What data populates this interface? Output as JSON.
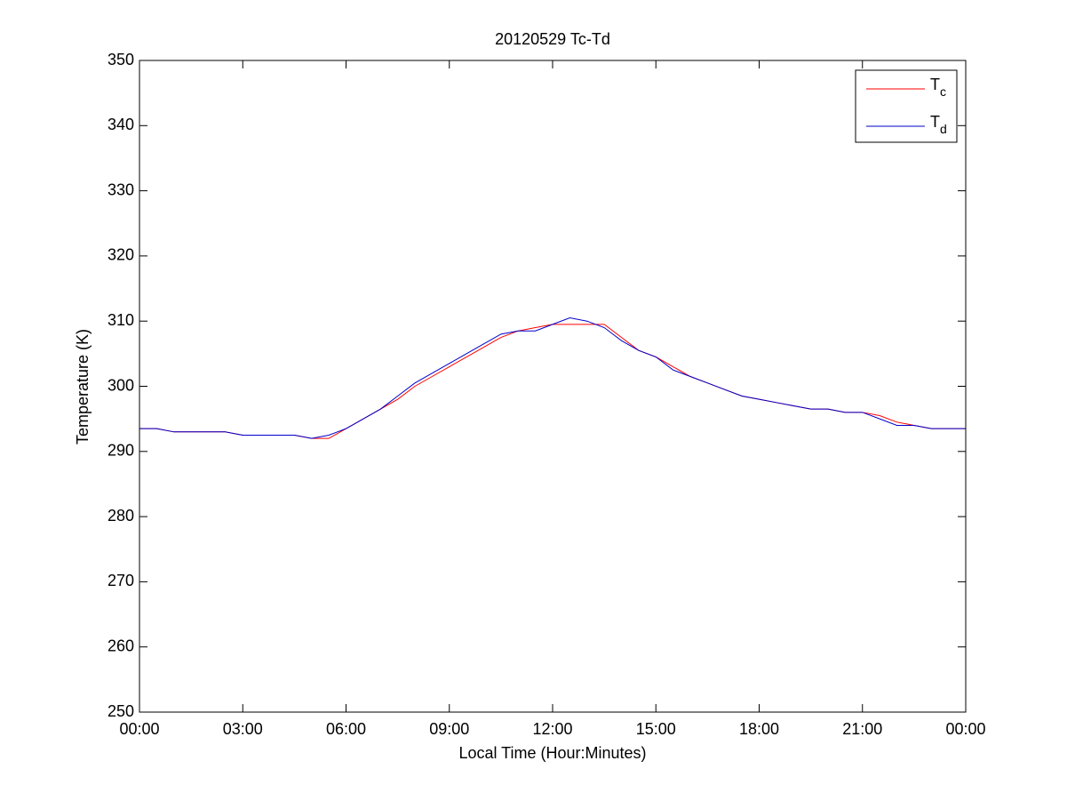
{
  "chart_data": {
    "type": "line",
    "title": "20120529 Tc-Td",
    "xlabel": "Local Time (Hour:Minutes)",
    "ylabel": "Temperature (K)",
    "x": [
      0,
      0.5,
      1,
      1.5,
      2,
      2.5,
      3,
      3.5,
      4,
      4.5,
      5,
      5.5,
      6,
      6.5,
      7,
      7.5,
      8,
      8.5,
      9,
      9.5,
      10,
      10.5,
      11,
      11.5,
      12,
      12.5,
      13,
      13.5,
      14,
      14.5,
      15,
      15.5,
      16,
      16.5,
      17,
      17.5,
      18,
      18.5,
      19,
      19.5,
      20,
      20.5,
      21,
      21.5,
      22,
      22.5,
      23,
      23.5,
      24
    ],
    "series": [
      {
        "name": "Tc",
        "color": "#ff0000",
        "values": [
          293.5,
          293.5,
          293,
          293,
          293,
          293,
          292.5,
          292.5,
          292.5,
          292.5,
          292,
          292,
          293.5,
          295,
          296.5,
          298,
          300,
          301.5,
          303,
          304.5,
          306,
          307.5,
          308.5,
          309,
          309.5,
          309.5,
          309.5,
          309.5,
          307.5,
          305.5,
          304.5,
          303,
          301.5,
          300.5,
          299.5,
          298.5,
          298,
          297.5,
          297,
          296.5,
          296.5,
          296,
          296,
          295.5,
          294.5,
          294,
          293.5,
          293.5,
          293.5
        ]
      },
      {
        "name": "Td",
        "color": "#0000cc",
        "values": [
          293.5,
          293.5,
          293,
          293,
          293,
          293,
          292.5,
          292.5,
          292.5,
          292.5,
          292,
          292.5,
          293.5,
          295,
          296.5,
          298.5,
          300.5,
          302,
          303.5,
          305,
          306.5,
          308,
          308.5,
          308.5,
          309.5,
          310.5,
          310,
          309,
          307,
          305.5,
          304.5,
          302.5,
          301.5,
          300.5,
          299.5,
          298.5,
          298,
          297.5,
          297,
          296.5,
          296.5,
          296,
          296,
          295,
          294,
          294,
          293.5,
          293.5,
          293.5
        ]
      }
    ],
    "xlim": [
      0,
      24
    ],
    "xticks": [
      {
        "value": 0,
        "label": "00:00"
      },
      {
        "value": 3,
        "label": "03:00"
      },
      {
        "value": 6,
        "label": "06:00"
      },
      {
        "value": 9,
        "label": "09:00"
      },
      {
        "value": 12,
        "label": "12:00"
      },
      {
        "value": 15,
        "label": "15:00"
      },
      {
        "value": 18,
        "label": "18:00"
      },
      {
        "value": 21,
        "label": "21:00"
      },
      {
        "value": 24,
        "label": "00:00"
      }
    ],
    "ylim": [
      250,
      350
    ],
    "yticks": [
      250,
      260,
      270,
      280,
      290,
      300,
      310,
      320,
      330,
      340,
      350
    ],
    "legend": "upper right",
    "grid": false
  }
}
